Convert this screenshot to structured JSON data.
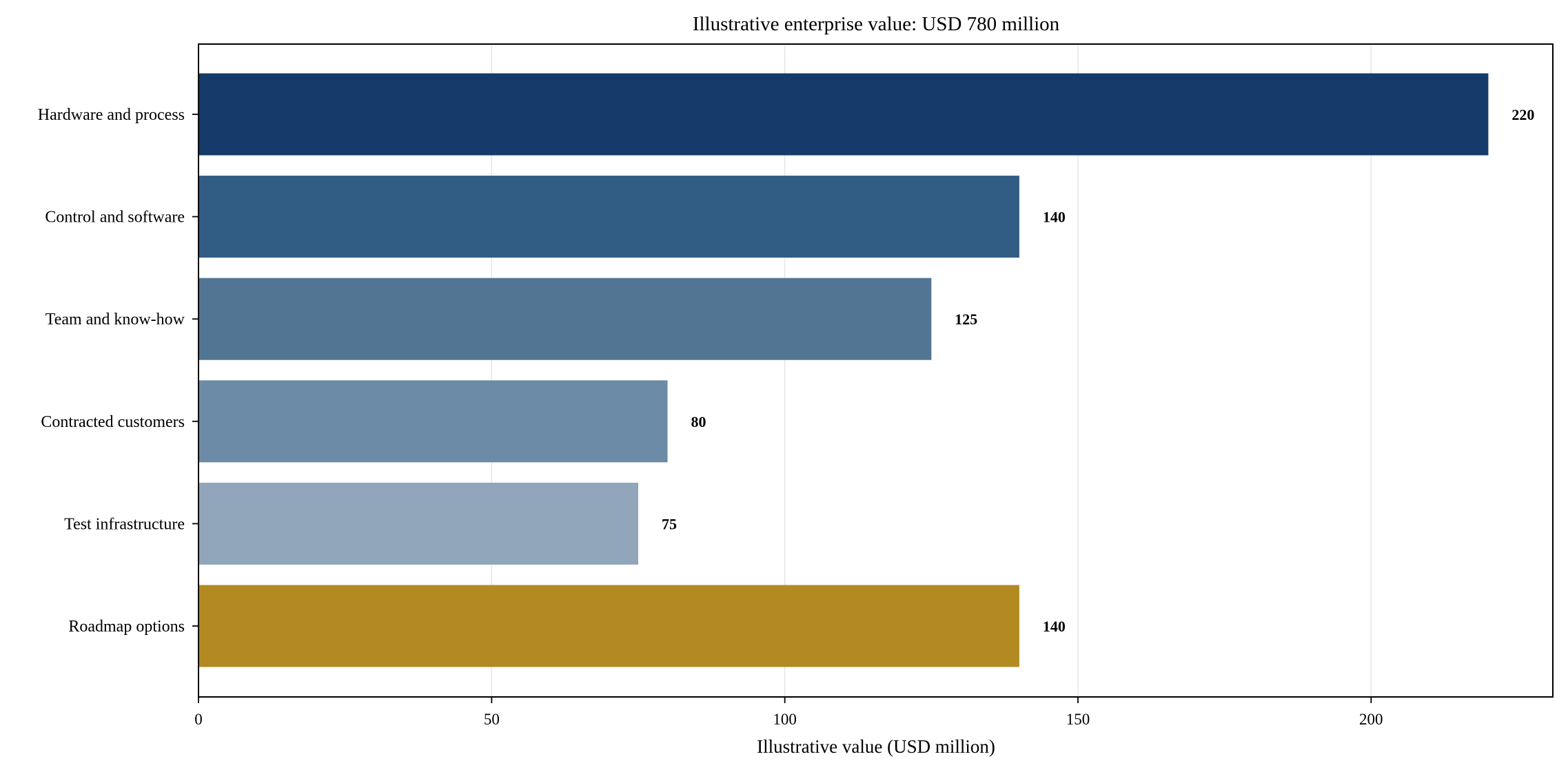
{
  "chart_data": {
    "type": "bar",
    "orientation": "horizontal",
    "title": "Illustrative enterprise value: USD 780 million",
    "xlabel": "Illustrative value (USD million)",
    "ylabel": "",
    "xlim": [
      0,
      231
    ],
    "xticks": [
      0,
      50,
      100,
      150,
      200
    ],
    "grid": "vertical",
    "categories": [
      "Hardware and process",
      "Control and software",
      "Team and know-how",
      "Contracted customers",
      "Test infrastructure",
      "Roadmap options"
    ],
    "values": [
      220,
      140,
      125,
      80,
      75,
      140
    ],
    "data_labels": [
      "220",
      "140",
      "125",
      "80",
      "75",
      "140"
    ],
    "colors": [
      "#143b69",
      "#315c84",
      "#527593",
      "#6c8ba6",
      "#91a6ba",
      "#b38a22"
    ]
  }
}
